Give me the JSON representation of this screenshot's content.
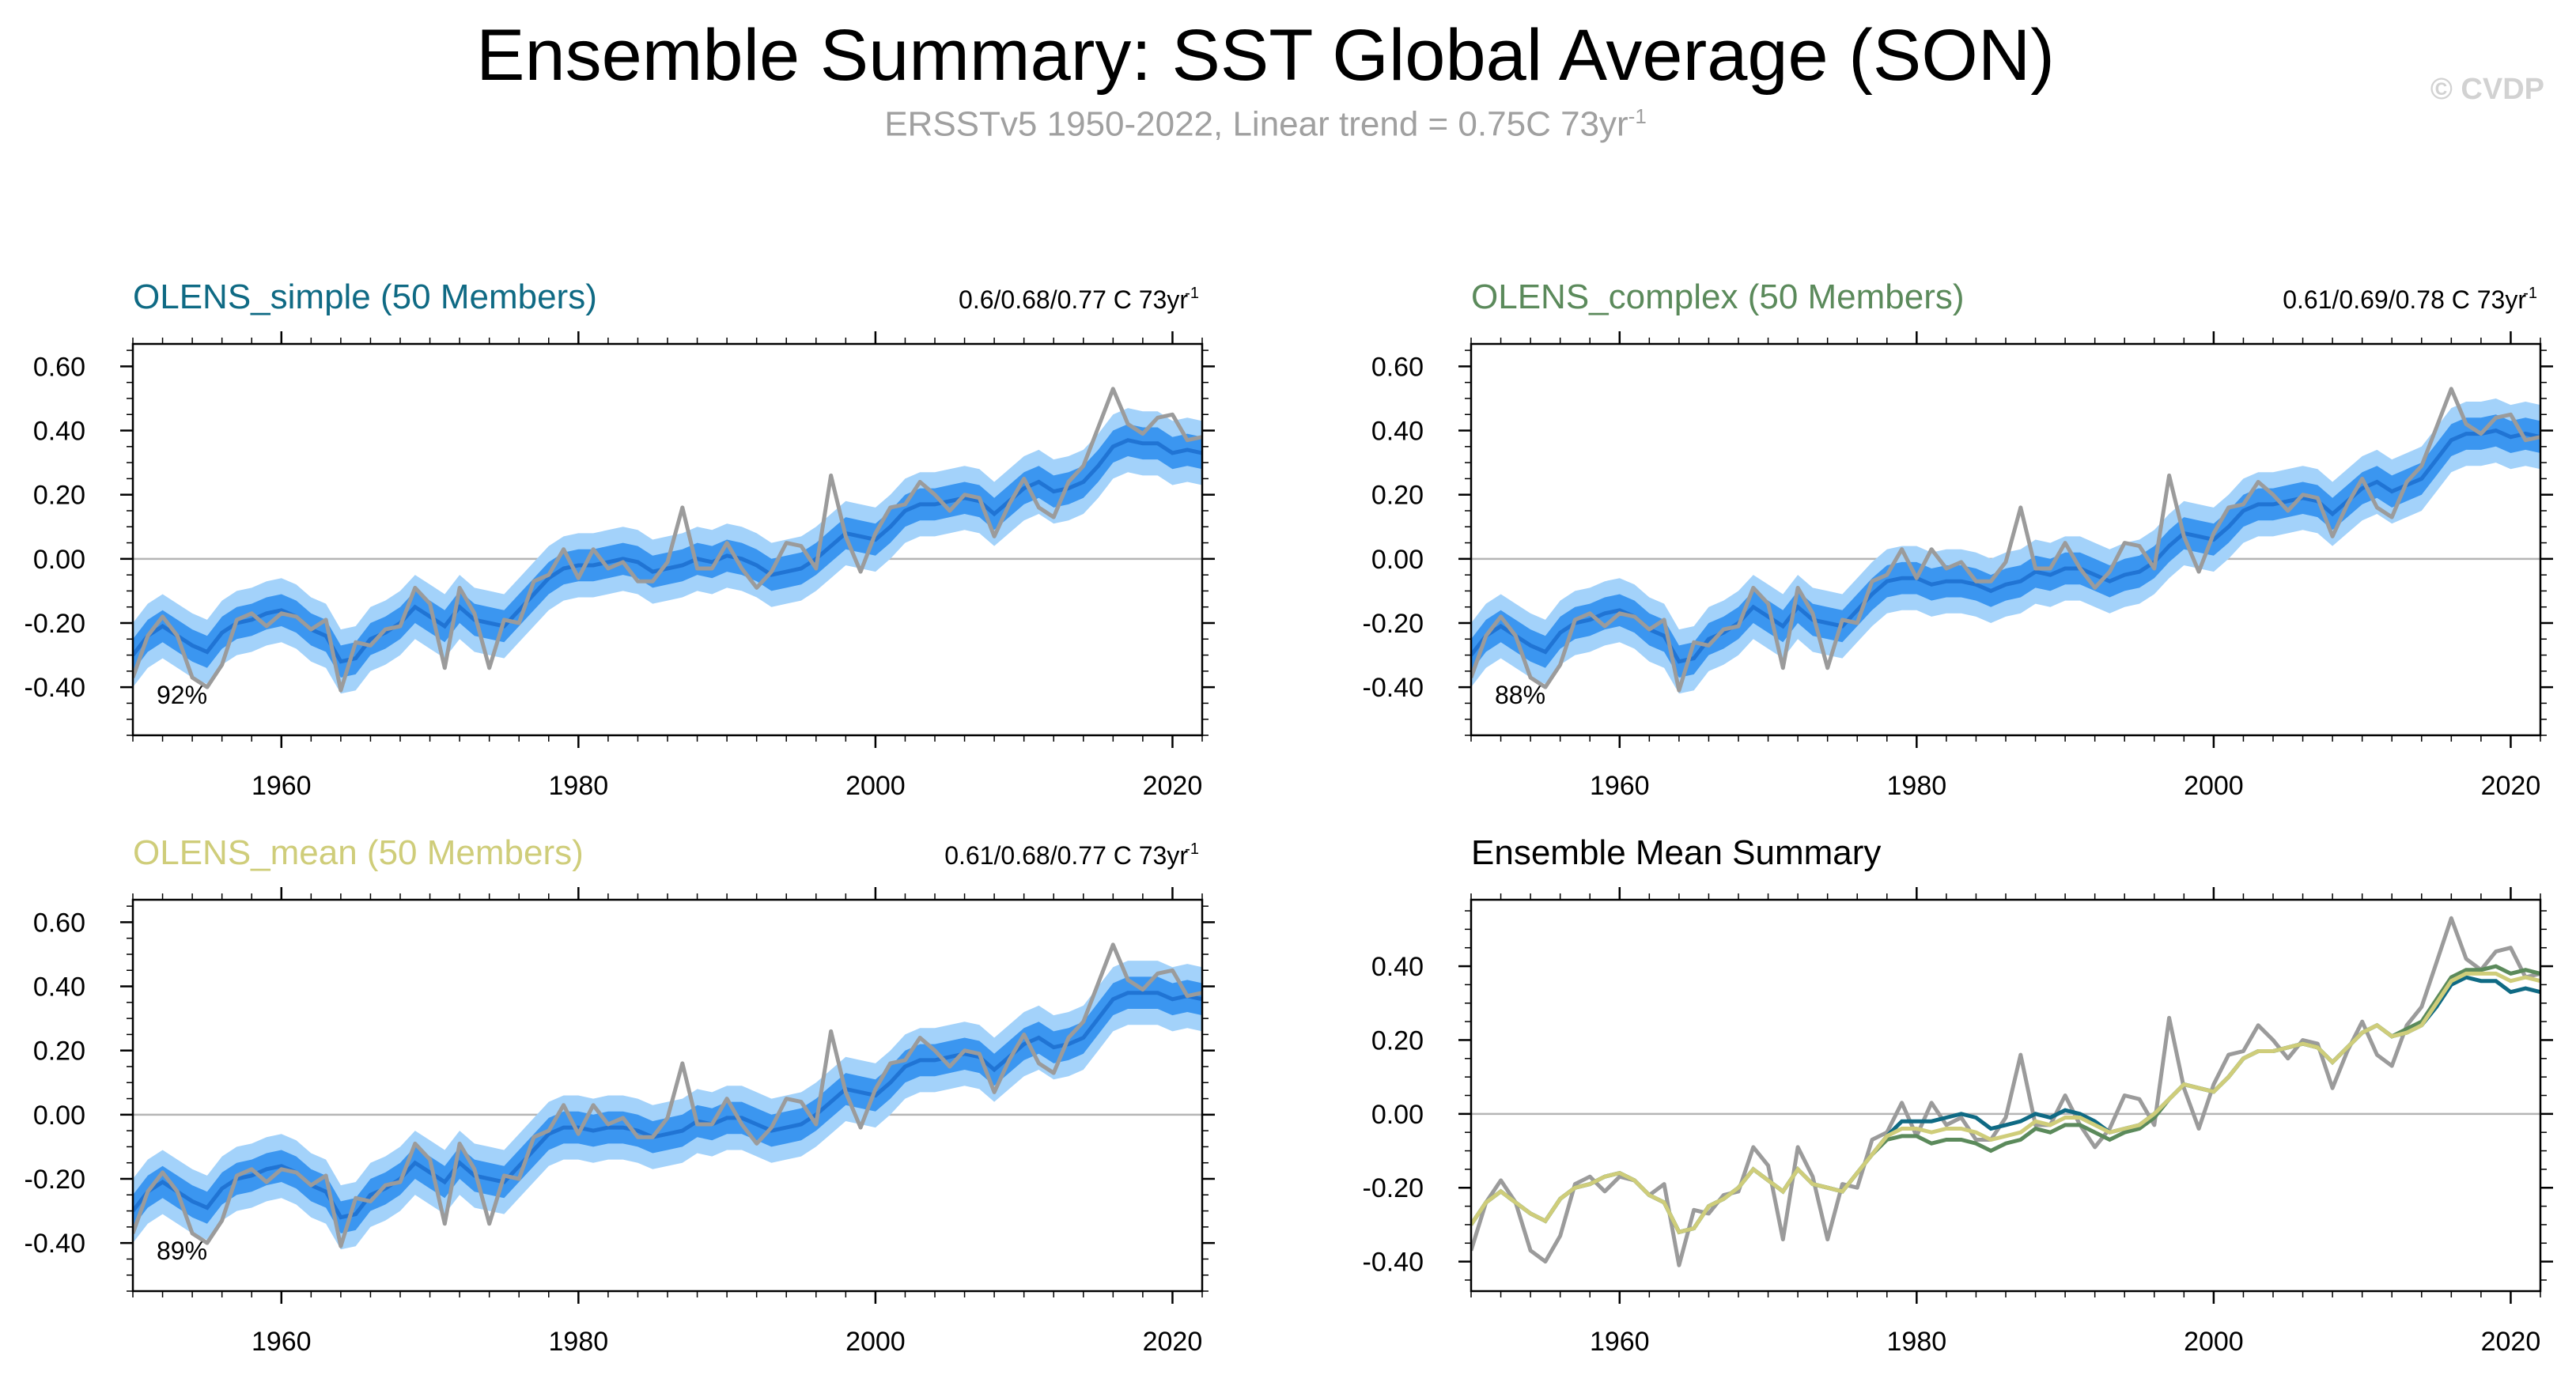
{
  "title": "Ensemble Summary: SST Global Average (SON)",
  "subtitle": "ERSSTv5 1950-2022, Linear trend = 0.75C 73yr",
  "subtitle_sup": "-1",
  "copyright": "© CVDP",
  "colors": {
    "obs": "#9b9b9b",
    "band_outer": "#a3d2fa",
    "band_inner": "#3b96f0",
    "ens_mean": "#2074d4",
    "simple": "#0f6a84",
    "complex": "#5b8a5b",
    "mean": "#cfcd7a",
    "axis": "#000000",
    "zero": "#b5b5b5"
  },
  "chart_data": [
    {
      "type": "line",
      "title": "OLENS_simple (50 Members)",
      "title_color": "#0f6a84",
      "trend": "0.6/0.68/0.77 C 73yr",
      "trend_sup": "-1",
      "percent": "92%",
      "x_range": [
        1950,
        2022
      ],
      "ylim": [
        -0.55,
        0.67
      ],
      "yticks": [
        "0.60",
        "0.40",
        "0.20",
        "0.00",
        "-0.20",
        "-0.40"
      ],
      "ytick_values": [
        0.6,
        0.4,
        0.2,
        0,
        -0.2,
        -0.4
      ],
      "xticks": [
        "1960",
        "1980",
        "2000",
        "2020"
      ],
      "xtick_values": [
        1960,
        1980,
        2000,
        2020
      ],
      "band_outer_halfwidth": 0.1,
      "band_inner_halfwidth": 0.05,
      "mean_offset": [
        0.0,
        0.0,
        0.0,
        0.0,
        0.0,
        0.0,
        0.0,
        0.0,
        0.0,
        0.0,
        0.0,
        0.0,
        0.0,
        0.0,
        0.0,
        0.0,
        0.0,
        0.0,
        0.0,
        0.0,
        0.0,
        0.0,
        0.0,
        0.0,
        0.0,
        0.0,
        0.0,
        0.0,
        0.0,
        0.01,
        0.01,
        0.02,
        0.02,
        0.03,
        0.03,
        0.02,
        0.02,
        0.02,
        0.02,
        0.02,
        0.02,
        0.01,
        0.01,
        0.0,
        0.0,
        0.0,
        0.0,
        0.0,
        0.0,
        0.0,
        0.0,
        0.0,
        0.0,
        0.0,
        0.0,
        0.0,
        0.0,
        0.0,
        0.0,
        0.0,
        0.0,
        0.0,
        0.0,
        0.0,
        0.0,
        -0.01,
        -0.01,
        -0.01,
        -0.02,
        -0.02,
        -0.03,
        -0.03,
        -0.03
      ]
    },
    {
      "type": "line",
      "title": "OLENS_complex (50 Members)",
      "title_color": "#5b8a5b",
      "trend": "0.61/0.69/0.78 C 73yr",
      "trend_sup": "-1",
      "percent": "88%",
      "x_range": [
        1950,
        2022
      ],
      "ylim": [
        -0.55,
        0.67
      ],
      "yticks": [
        "0.60",
        "0.40",
        "0.20",
        "0.00",
        "-0.20",
        "-0.40"
      ],
      "ytick_values": [
        0.6,
        0.4,
        0.2,
        0,
        -0.2,
        -0.4
      ],
      "xticks": [
        "1960",
        "1980",
        "2000",
        "2020"
      ],
      "xtick_values": [
        1960,
        1980,
        2000,
        2020
      ],
      "band_outer_halfwidth": 0.1,
      "band_inner_halfwidth": 0.05,
      "mean_offset": [
        0.0,
        0.0,
        0.0,
        0.0,
        0.0,
        0.0,
        0.0,
        0.0,
        0.0,
        0.0,
        0.0,
        0.0,
        0.0,
        0.0,
        0.0,
        0.0,
        0.0,
        0.0,
        0.0,
        0.0,
        0.0,
        0.0,
        0.0,
        0.0,
        0.0,
        0.0,
        0.0,
        0.0,
        -0.01,
        -0.02,
        -0.03,
        -0.04,
        -0.04,
        -0.04,
        -0.04,
        -0.04,
        -0.03,
        -0.03,
        -0.02,
        -0.02,
        -0.02,
        -0.02,
        -0.02,
        -0.02,
        -0.01,
        -0.01,
        -0.01,
        0.0,
        0.0,
        0.0,
        0.0,
        0.0,
        0.0,
        0.0,
        0.0,
        0.0,
        0.0,
        0.0,
        0.0,
        0.0,
        0.0,
        0.0,
        0.0,
        0.01,
        0.01,
        0.01,
        0.01,
        0.01,
        0.01,
        0.02,
        0.02,
        0.02,
        0.02
      ]
    },
    {
      "type": "line",
      "title": "OLENS_mean (50 Members)",
      "title_color": "#cfcd7a",
      "trend": "0.61/0.68/0.77 C 73yr",
      "trend_sup": "-1",
      "percent": "89%",
      "x_range": [
        1950,
        2022
      ],
      "ylim": [
        -0.55,
        0.67
      ],
      "yticks": [
        "0.60",
        "0.40",
        "0.20",
        "0.00",
        "-0.20",
        "-0.40"
      ],
      "ytick_values": [
        0.6,
        0.4,
        0.2,
        0,
        -0.2,
        -0.4
      ],
      "xticks": [
        "1960",
        "1980",
        "2000",
        "2020"
      ],
      "xtick_values": [
        1960,
        1980,
        2000,
        2020
      ],
      "band_outer_halfwidth": 0.1,
      "band_inner_halfwidth": 0.05,
      "mean_offset": [
        0.0,
        0.0,
        0.0,
        0.0,
        0.0,
        0.0,
        0.0,
        0.0,
        0.0,
        0.0,
        0.0,
        0.0,
        0.0,
        0.0,
        0.0,
        0.0,
        0.0,
        0.0,
        0.0,
        0.0,
        0.0,
        0.0,
        0.0,
        0.0,
        0.0,
        0.0,
        0.0,
        0.0,
        0.0,
        0.0,
        -0.01,
        -0.01,
        -0.01,
        -0.01,
        -0.01,
        -0.01,
        -0.01,
        -0.01,
        0.0,
        0.0,
        0.0,
        0.0,
        0.0,
        0.0,
        0.0,
        0.0,
        0.0,
        0.0,
        0.0,
        0.0,
        0.0,
        0.0,
        0.0,
        0.0,
        0.0,
        0.0,
        0.0,
        0.0,
        0.0,
        0.0,
        0.0,
        0.0,
        0.0,
        0.0,
        0.0,
        0.0,
        0.0,
        0.0,
        0.0,
        0.0,
        0.0,
        0.0,
        0.0
      ]
    },
    {
      "type": "line",
      "title": "Ensemble Mean Summary",
      "title_color": "#000000",
      "x_range": [
        1950,
        2022
      ],
      "ylim": [
        -0.48,
        0.58
      ],
      "yticks": [
        "0.40",
        "0.20",
        "0.00",
        "-0.20",
        "-0.40"
      ],
      "ytick_values": [
        0.4,
        0.2,
        0,
        -0.2,
        -0.4
      ],
      "xticks": [
        "1960",
        "1980",
        "2000",
        "2020"
      ],
      "xtick_values": [
        1960,
        1980,
        2000,
        2020
      ],
      "series_names": [
        "OLENS_simple",
        "OLENS_complex",
        "OLENS_mean"
      ]
    }
  ],
  "series_x_start": 1950,
  "ensemble_mean": [
    -0.3,
    -0.24,
    -0.21,
    -0.24,
    -0.27,
    -0.29,
    -0.23,
    -0.2,
    -0.19,
    -0.17,
    -0.16,
    -0.18,
    -0.22,
    -0.24,
    -0.32,
    -0.31,
    -0.25,
    -0.23,
    -0.2,
    -0.15,
    -0.18,
    -0.21,
    -0.15,
    -0.19,
    -0.2,
    -0.21,
    -0.16,
    -0.11,
    -0.06,
    -0.04,
    -0.03,
    -0.04,
    -0.03,
    -0.03,
    -0.04,
    -0.06,
    -0.05,
    -0.04,
    -0.02,
    -0.03,
    -0.01,
    -0.01,
    -0.03,
    -0.05,
    -0.04,
    -0.03,
    0.0,
    0.04,
    0.08,
    0.07,
    0.06,
    0.1,
    0.15,
    0.17,
    0.17,
    0.18,
    0.19,
    0.18,
    0.14,
    0.18,
    0.22,
    0.24,
    0.21,
    0.22,
    0.24,
    0.3,
    0.36,
    0.38,
    0.38,
    0.38,
    0.36,
    0.37,
    0.36
  ],
  "observed": [
    -0.37,
    -0.24,
    -0.18,
    -0.24,
    -0.37,
    -0.4,
    -0.33,
    -0.19,
    -0.17,
    -0.21,
    -0.17,
    -0.18,
    -0.22,
    -0.19,
    -0.41,
    -0.26,
    -0.27,
    -0.22,
    -0.21,
    -0.09,
    -0.14,
    -0.34,
    -0.09,
    -0.17,
    -0.34,
    -0.19,
    -0.2,
    -0.07,
    -0.05,
    0.03,
    -0.06,
    0.03,
    -0.03,
    -0.01,
    -0.07,
    -0.07,
    -0.01,
    0.16,
    -0.03,
    -0.03,
    0.05,
    -0.03,
    -0.09,
    -0.04,
    0.05,
    0.04,
    -0.03,
    0.26,
    0.07,
    -0.04,
    0.08,
    0.16,
    0.17,
    0.24,
    0.2,
    0.15,
    0.2,
    0.19,
    0.07,
    0.17,
    0.25,
    0.16,
    0.13,
    0.24,
    0.29,
    0.41,
    0.53,
    0.42,
    0.39,
    0.44,
    0.45,
    0.37,
    0.38
  ],
  "summary_series": {
    "simple": [
      -0.3,
      -0.24,
      -0.21,
      -0.24,
      -0.27,
      -0.29,
      -0.23,
      -0.2,
      -0.19,
      -0.17,
      -0.16,
      -0.18,
      -0.22,
      -0.24,
      -0.32,
      -0.31,
      -0.25,
      -0.23,
      -0.2,
      -0.15,
      -0.18,
      -0.21,
      -0.15,
      -0.19,
      -0.2,
      -0.21,
      -0.16,
      -0.11,
      -0.06,
      -0.02,
      -0.02,
      -0.02,
      -0.01,
      0.0,
      -0.01,
      -0.04,
      -0.03,
      -0.02,
      0.0,
      -0.01,
      0.01,
      0.0,
      -0.02,
      -0.05,
      -0.04,
      -0.03,
      0.0,
      0.04,
      0.08,
      0.07,
      0.06,
      0.1,
      0.15,
      0.17,
      0.17,
      0.18,
      0.19,
      0.18,
      0.14,
      0.18,
      0.22,
      0.24,
      0.21,
      0.22,
      0.24,
      0.29,
      0.35,
      0.37,
      0.36,
      0.36,
      0.33,
      0.34,
      0.33
    ],
    "complex": [
      -0.3,
      -0.24,
      -0.21,
      -0.24,
      -0.27,
      -0.29,
      -0.23,
      -0.2,
      -0.19,
      -0.17,
      -0.16,
      -0.18,
      -0.22,
      -0.24,
      -0.32,
      -0.31,
      -0.25,
      -0.23,
      -0.2,
      -0.15,
      -0.18,
      -0.21,
      -0.15,
      -0.19,
      -0.2,
      -0.21,
      -0.16,
      -0.11,
      -0.07,
      -0.06,
      -0.06,
      -0.08,
      -0.07,
      -0.07,
      -0.08,
      -0.1,
      -0.08,
      -0.07,
      -0.04,
      -0.05,
      -0.03,
      -0.03,
      -0.05,
      -0.07,
      -0.05,
      -0.04,
      -0.01,
      0.04,
      0.08,
      0.07,
      0.06,
      0.1,
      0.15,
      0.17,
      0.17,
      0.18,
      0.19,
      0.18,
      0.14,
      0.18,
      0.22,
      0.24,
      0.21,
      0.23,
      0.25,
      0.31,
      0.37,
      0.39,
      0.39,
      0.4,
      0.38,
      0.39,
      0.38
    ],
    "mean": [
      -0.3,
      -0.24,
      -0.21,
      -0.24,
      -0.27,
      -0.29,
      -0.23,
      -0.2,
      -0.19,
      -0.17,
      -0.16,
      -0.18,
      -0.22,
      -0.24,
      -0.32,
      -0.31,
      -0.25,
      -0.23,
      -0.2,
      -0.15,
      -0.18,
      -0.21,
      -0.15,
      -0.19,
      -0.2,
      -0.21,
      -0.16,
      -0.11,
      -0.06,
      -0.04,
      -0.04,
      -0.05,
      -0.04,
      -0.04,
      -0.05,
      -0.07,
      -0.06,
      -0.05,
      -0.02,
      -0.03,
      -0.01,
      -0.01,
      -0.03,
      -0.05,
      -0.04,
      -0.03,
      0.0,
      0.04,
      0.08,
      0.07,
      0.06,
      0.1,
      0.15,
      0.17,
      0.17,
      0.18,
      0.19,
      0.18,
      0.14,
      0.18,
      0.22,
      0.24,
      0.21,
      0.22,
      0.24,
      0.3,
      0.36,
      0.38,
      0.38,
      0.38,
      0.36,
      0.37,
      0.36
    ]
  }
}
